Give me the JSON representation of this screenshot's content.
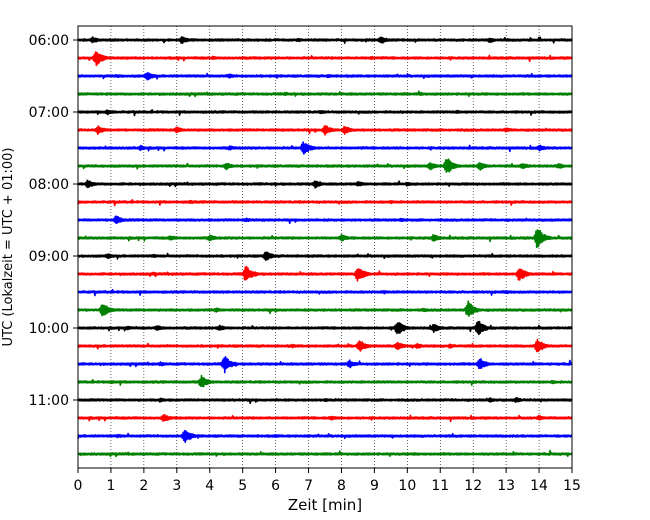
{
  "chart_data": {
    "type": "line",
    "xlabel": "Zeit  [min]",
    "ylabel": "UTC (Lokalzeit = UTC + 01:00)",
    "xlim": [
      0,
      15
    ],
    "x_ticks": [
      "0",
      "1",
      "2",
      "3",
      "4",
      "5",
      "6",
      "7",
      "8",
      "9",
      "10",
      "11",
      "12",
      "13",
      "14",
      "15"
    ],
    "y_ticks": [
      "06:00",
      "07:00",
      "08:00",
      "09:00",
      "10:00",
      "11:00"
    ],
    "trace_interval_min": 15,
    "grid": "vertical-dotted",
    "colors": [
      "#000000",
      "#ff0000",
      "#0000ff",
      "#008000"
    ],
    "traces": [
      {
        "start": "06:00",
        "color": "#000000",
        "events": [
          [
            0.45,
            0.35
          ],
          [
            3.15,
            0.45
          ],
          [
            9.2,
            0.45
          ],
          [
            12.5,
            0.3
          ],
          [
            6.7,
            0.2
          ]
        ]
      },
      {
        "start": "06:15",
        "color": "#ff0000",
        "events": [
          [
            0.55,
            0.9
          ],
          [
            4.1,
            0.2
          ],
          [
            8.9,
            0.2
          ]
        ]
      },
      {
        "start": "06:30",
        "color": "#0000ff",
        "events": [
          [
            2.1,
            0.5
          ],
          [
            1.2,
            0.2
          ],
          [
            4.6,
            0.25
          ],
          [
            7.6,
            0.2
          ]
        ]
      },
      {
        "start": "06:45",
        "color": "#008000",
        "events": [
          [
            6.3,
            0.2
          ],
          [
            10.4,
            0.2
          ]
        ]
      },
      {
        "start": "07:00",
        "color": "#000000",
        "events": [
          [
            0.9,
            0.3
          ],
          [
            7.4,
            0.2
          ],
          [
            11.5,
            0.2
          ]
        ]
      },
      {
        "start": "07:15",
        "color": "#ff0000",
        "events": [
          [
            0.6,
            0.5
          ],
          [
            3.0,
            0.35
          ],
          [
            7.5,
            0.6
          ],
          [
            8.1,
            0.5
          ],
          [
            13.0,
            0.25
          ]
        ]
      },
      {
        "start": "07:30",
        "color": "#0000ff",
        "events": [
          [
            6.85,
            0.8
          ],
          [
            1.9,
            0.3
          ],
          [
            4.6,
            0.25
          ],
          [
            14.0,
            0.35
          ]
        ]
      },
      {
        "start": "07:45",
        "color": "#008000",
        "events": [
          [
            11.2,
            1.0
          ],
          [
            10.7,
            0.45
          ],
          [
            12.2,
            0.5
          ],
          [
            4.5,
            0.4
          ],
          [
            13.5,
            0.35
          ],
          [
            14.6,
            0.3
          ]
        ]
      },
      {
        "start": "08:00",
        "color": "#000000",
        "events": [
          [
            0.3,
            0.5
          ],
          [
            7.2,
            0.45
          ],
          [
            8.5,
            0.3
          ],
          [
            10.0,
            0.25
          ]
        ]
      },
      {
        "start": "08:15",
        "color": "#ff0000",
        "events": [
          [
            3.4,
            0.2
          ],
          [
            9.5,
            0.2
          ]
        ]
      },
      {
        "start": "08:30",
        "color": "#0000ff",
        "events": [
          [
            1.15,
            0.5
          ],
          [
            5.1,
            0.25
          ],
          [
            9.8,
            0.2
          ]
        ]
      },
      {
        "start": "08:45",
        "color": "#008000",
        "events": [
          [
            13.95,
            1.3
          ],
          [
            8.0,
            0.4
          ],
          [
            10.8,
            0.45
          ],
          [
            4.0,
            0.35
          ],
          [
            2.8,
            0.3
          ]
        ]
      },
      {
        "start": "09:00",
        "color": "#000000",
        "events": [
          [
            5.7,
            0.6
          ],
          [
            0.9,
            0.3
          ],
          [
            2.3,
            0.2
          ]
        ]
      },
      {
        "start": "09:15",
        "color": "#ff0000",
        "events": [
          [
            5.1,
            1.0
          ],
          [
            8.5,
            0.9
          ],
          [
            13.4,
            0.9
          ],
          [
            2.3,
            0.2
          ]
        ]
      },
      {
        "start": "09:30",
        "color": "#0000ff",
        "events": [
          [
            9.3,
            0.2
          ],
          [
            13.0,
            0.2
          ]
        ]
      },
      {
        "start": "09:45",
        "color": "#008000",
        "events": [
          [
            11.85,
            1.0
          ],
          [
            0.75,
            0.8
          ],
          [
            4.2,
            0.25
          ],
          [
            10.5,
            0.2
          ]
        ]
      },
      {
        "start": "10:00",
        "color": "#000000",
        "events": [
          [
            9.7,
            0.9
          ],
          [
            12.15,
            0.9
          ],
          [
            10.8,
            0.5
          ],
          [
            4.3,
            0.35
          ],
          [
            2.4,
            0.3
          ],
          [
            1.5,
            0.25
          ]
        ]
      },
      {
        "start": "10:15",
        "color": "#ff0000",
        "events": [
          [
            8.55,
            0.7
          ],
          [
            13.95,
            0.85
          ],
          [
            9.7,
            0.5
          ],
          [
            10.3,
            0.3
          ],
          [
            11.3,
            0.25
          ],
          [
            6.5,
            0.2
          ]
        ]
      },
      {
        "start": "10:30",
        "color": "#0000ff",
        "events": [
          [
            4.45,
            1.0
          ],
          [
            12.2,
            0.7
          ],
          [
            8.25,
            0.45
          ],
          [
            2.5,
            0.25
          ]
        ]
      },
      {
        "start": "10:45",
        "color": "#008000",
        "events": [
          [
            3.75,
            0.75
          ],
          [
            14.4,
            0.2
          ],
          [
            1.0,
            0.2
          ]
        ]
      },
      {
        "start": "11:00",
        "color": "#000000",
        "events": [
          [
            13.3,
            0.3
          ],
          [
            12.5,
            0.25
          ],
          [
            2.5,
            0.25
          ],
          [
            7.5,
            0.2
          ]
        ]
      },
      {
        "start": "11:15",
        "color": "#ff0000",
        "events": [
          [
            2.6,
            0.45
          ],
          [
            14.0,
            0.3
          ],
          [
            7.7,
            0.25
          ]
        ]
      },
      {
        "start": "11:30",
        "color": "#0000ff",
        "events": [
          [
            3.25,
            0.85
          ],
          [
            1.2,
            0.2
          ],
          [
            6.0,
            0.15
          ]
        ]
      },
      {
        "start": "11:45",
        "color": "#008000",
        "events": [
          [
            10.2,
            0.15
          ]
        ]
      }
    ]
  }
}
